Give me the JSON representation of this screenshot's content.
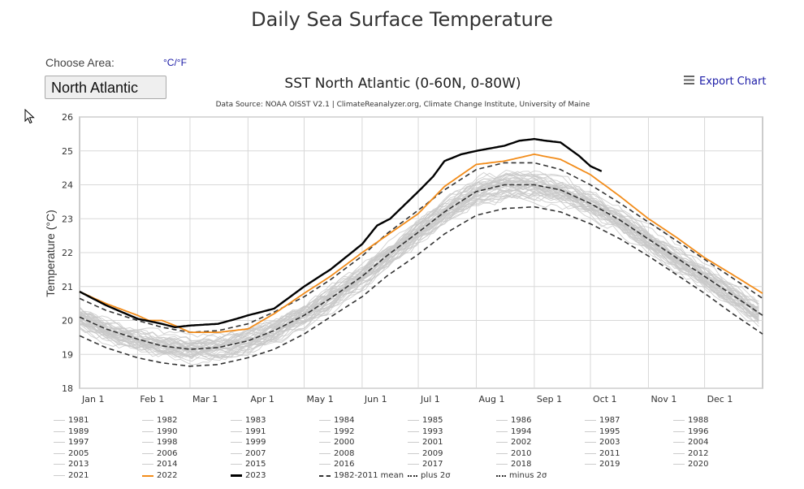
{
  "page": {
    "title": "Daily Sea Surface Temperature"
  },
  "controls": {
    "choose_area_label": "Choose Area:",
    "unit_toggle_label": "°C/°F",
    "area_selected": "North Atlantic",
    "export_label": "Export Chart"
  },
  "colors": {
    "background_years": "#c8c8c8",
    "year_2022": "#f28c1a",
    "year_2023": "#000000",
    "stat_lines": "#333333",
    "link": "#1a1aa6"
  },
  "chart_data": {
    "type": "line",
    "title": "SST North Atlantic (0-60N, 0-80W)",
    "subtitle": "Data Source: NOAA OISST V2.1 | ClimateReanalyzer.org, Climate Change Institute, University of Maine",
    "xlabel": "",
    "ylabel": "Temperature (°C)",
    "ylim": [
      18,
      26
    ],
    "yticks": [
      18,
      19,
      20,
      21,
      22,
      23,
      24,
      25,
      26
    ],
    "xlim_day_of_year": [
      1,
      366
    ],
    "xticks": [
      {
        "label": "Jan 1",
        "day": 1
      },
      {
        "label": "Feb 1",
        "day": 32
      },
      {
        "label": "Mar 1",
        "day": 60
      },
      {
        "label": "Apr 1",
        "day": 91
      },
      {
        "label": "May 1",
        "day": 121
      },
      {
        "label": "Jun 1",
        "day": 152
      },
      {
        "label": "Jul 1",
        "day": 182
      },
      {
        "label": "Aug 1",
        "day": 213
      },
      {
        "label": "Sep 1",
        "day": 244
      },
      {
        "label": "Oct 1",
        "day": 274
      },
      {
        "label": "Nov 1",
        "day": 305
      },
      {
        "label": "Dec 1",
        "day": 335
      }
    ],
    "grid": true,
    "legend_position": "bottom",
    "series": [
      {
        "name": "1982-2011 mean",
        "style": "dashed",
        "x": [
          1,
          15,
          32,
          45,
          60,
          75,
          91,
          105,
          121,
          135,
          152,
          165,
          182,
          196,
          213,
          228,
          244,
          258,
          274,
          290,
          305,
          320,
          335,
          350,
          366
        ],
        "y": [
          20.1,
          19.75,
          19.45,
          19.25,
          19.15,
          19.2,
          19.4,
          19.7,
          20.15,
          20.65,
          21.3,
          21.9,
          22.6,
          23.2,
          23.8,
          24.0,
          24.0,
          23.85,
          23.45,
          22.95,
          22.4,
          21.85,
          21.3,
          20.75,
          20.15
        ]
      },
      {
        "name": "plus 2σ",
        "style": "dashdot",
        "x": [
          1,
          15,
          32,
          45,
          60,
          75,
          91,
          105,
          121,
          135,
          152,
          165,
          182,
          196,
          213,
          228,
          244,
          258,
          274,
          290,
          305,
          320,
          335,
          350,
          366
        ],
        "y": [
          20.65,
          20.3,
          20.0,
          19.8,
          19.65,
          19.7,
          19.9,
          20.25,
          20.7,
          21.2,
          21.9,
          22.55,
          23.25,
          23.85,
          24.45,
          24.65,
          24.65,
          24.45,
          24.0,
          23.45,
          22.9,
          22.35,
          21.8,
          21.25,
          20.65
        ]
      },
      {
        "name": "minus 2σ",
        "style": "dashdot",
        "x": [
          1,
          15,
          32,
          45,
          60,
          75,
          91,
          105,
          121,
          135,
          152,
          165,
          182,
          196,
          213,
          228,
          244,
          258,
          274,
          290,
          305,
          320,
          335,
          350,
          366
        ],
        "y": [
          19.55,
          19.2,
          18.9,
          18.75,
          18.65,
          18.7,
          18.9,
          19.15,
          19.6,
          20.1,
          20.7,
          21.3,
          21.95,
          22.55,
          23.1,
          23.3,
          23.35,
          23.2,
          22.85,
          22.4,
          21.9,
          21.35,
          20.8,
          20.2,
          19.6
        ]
      },
      {
        "name": "2022",
        "style": "solid",
        "x": [
          1,
          15,
          32,
          38,
          45,
          52,
          60,
          75,
          91,
          105,
          121,
          135,
          152,
          165,
          182,
          196,
          213,
          228,
          244,
          258,
          274,
          290,
          305,
          320,
          335,
          350,
          366
        ],
        "y": [
          20.85,
          20.5,
          20.15,
          20.0,
          20.0,
          19.85,
          19.65,
          19.65,
          19.75,
          20.2,
          20.8,
          21.3,
          22.0,
          22.5,
          23.15,
          23.95,
          24.6,
          24.7,
          24.9,
          24.75,
          24.3,
          23.65,
          23.0,
          22.45,
          21.85,
          21.35,
          20.8
        ]
      },
      {
        "name": "2023",
        "style": "solid-thick",
        "x": [
          1,
          15,
          32,
          45,
          52,
          60,
          75,
          85,
          91,
          105,
          121,
          135,
          152,
          160,
          167,
          182,
          190,
          196,
          205,
          213,
          228,
          236,
          244,
          250,
          258,
          268,
          274,
          280
        ],
        "y": [
          20.85,
          20.45,
          20.05,
          19.9,
          19.8,
          19.85,
          19.9,
          20.05,
          20.15,
          20.35,
          21.0,
          21.5,
          22.25,
          22.8,
          23.0,
          23.8,
          24.25,
          24.7,
          24.9,
          25.0,
          25.15,
          25.3,
          25.35,
          25.3,
          25.25,
          24.85,
          24.55,
          24.4
        ]
      }
    ]
  },
  "legend": {
    "years": [
      "1981",
      "1982",
      "1983",
      "1984",
      "1985",
      "1986",
      "1987",
      "1988",
      "1989",
      "1990",
      "1991",
      "1992",
      "1993",
      "1994",
      "1995",
      "1996",
      "1997",
      "1998",
      "1999",
      "2000",
      "2001",
      "2002",
      "2003",
      "2004",
      "2005",
      "2006",
      "2007",
      "2008",
      "2009",
      "2010",
      "2011",
      "2012",
      "2013",
      "2014",
      "2015",
      "2016",
      "2017",
      "2018",
      "2019",
      "2020",
      "2021",
      "2022",
      "2023"
    ],
    "stats": [
      "1982-2011 mean",
      "plus 2σ",
      "minus 2σ"
    ]
  }
}
